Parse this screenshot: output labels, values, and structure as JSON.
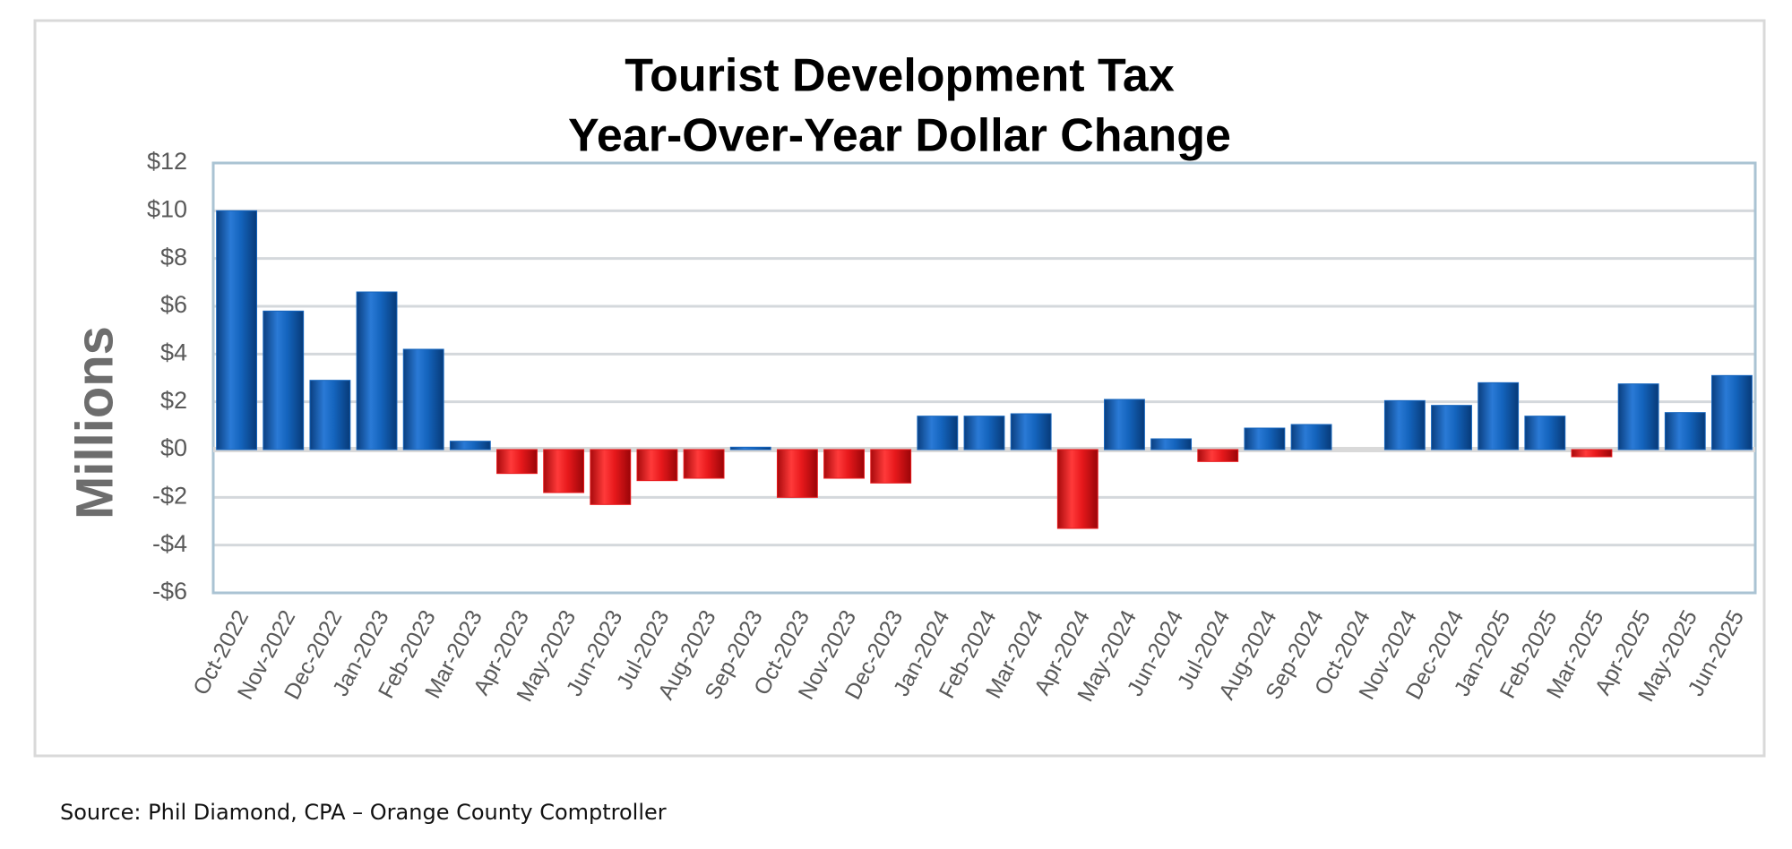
{
  "chart_data": {
    "type": "bar",
    "title": [
      "Tourist Development Tax",
      "Year-Over-Year Dollar Change"
    ],
    "y_axis_label": "Millions",
    "source": "Source:  Phil Diamond, CPA – Orange County Comptroller",
    "categories": [
      "Oct-2022",
      "Nov-2022",
      "Dec-2022",
      "Jan-2023",
      "Feb-2023",
      "Mar-2023",
      "Apr-2023",
      "May-2023",
      "Jun-2023",
      "Jul-2023",
      "Aug-2023",
      "Sep-2023",
      "Oct-2023",
      "Nov-2023",
      "Dec-2023",
      "Jan-2024",
      "Feb-2024",
      "Mar-2024",
      "Apr-2024",
      "May-2024",
      "Jun-2024",
      "Jul-2024",
      "Aug-2024",
      "Sep-2024",
      "Oct-2024",
      "Nov-2024",
      "Dec-2024",
      "Jan-2025",
      "Feb-2025",
      "Mar-2025",
      "Apr-2025",
      "May-2025",
      "Jun-2025"
    ],
    "values": [
      10.0,
      5.8,
      2.9,
      6.6,
      4.2,
      0.35,
      -1.0,
      -1.8,
      -2.3,
      -1.3,
      -1.2,
      0.1,
      -2.0,
      -1.2,
      -1.4,
      1.4,
      1.4,
      1.5,
      -3.3,
      2.1,
      0.45,
      -0.5,
      0.9,
      1.05,
      0,
      2.05,
      1.85,
      2.8,
      1.4,
      -0.3,
      2.75,
      1.55,
      3.1
    ],
    "color_positive": "#1464bd",
    "color_negative": "#e8191c",
    "ylim": [
      -6,
      12
    ],
    "yticks": [
      {
        "value": -6,
        "label": "-$6"
      },
      {
        "value": -4,
        "label": "-$4"
      },
      {
        "value": -2,
        "label": "-$2"
      },
      {
        "value": 0,
        "label": "$0"
      },
      {
        "value": 2,
        "label": "$2"
      },
      {
        "value": 4,
        "label": "$4"
      },
      {
        "value": 6,
        "label": "$6"
      },
      {
        "value": 8,
        "label": "$8"
      },
      {
        "value": 10,
        "label": "$10"
      },
      {
        "value": 12,
        "label": "$12"
      }
    ],
    "grid": true
  }
}
